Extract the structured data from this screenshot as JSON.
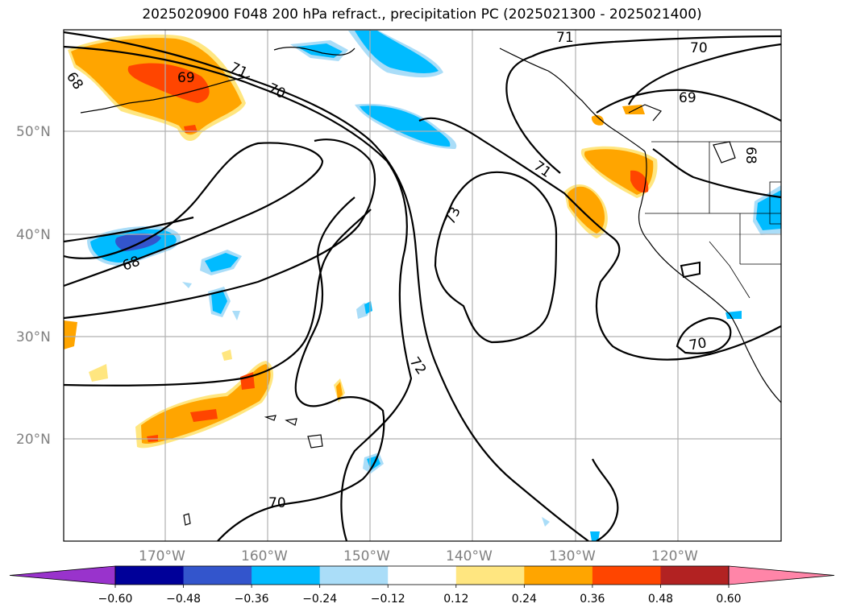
{
  "title": "2025020900 F048 200 hPa refract., precipitation PC (2025021300 - 2025021400)",
  "lat_labels": [
    "50°N",
    "40°N",
    "30°N",
    "20°N"
  ],
  "lon_labels": [
    "170°W",
    "160°W",
    "150°W",
    "140°W",
    "130°W",
    "120°W"
  ],
  "contour_labels": [
    "68",
    "69",
    "71",
    "70",
    "71",
    "70",
    "69",
    "68",
    "68",
    "73",
    "71",
    "72",
    "70",
    "70"
  ],
  "colorbar": {
    "ticks": [
      "−0.60",
      "−0.48",
      "−0.36",
      "−0.24",
      "−0.12",
      "0.12",
      "0.24",
      "0.36",
      "0.48",
      "0.60"
    ],
    "colors": [
      "#9933cc",
      "#000099",
      "#3355cc",
      "#00bbff",
      "#aaddf8",
      "#ffffff",
      "#ffe680",
      "#ffa500",
      "#ff4500",
      "#b22222",
      "#ff85a8"
    ]
  },
  "colors": {
    "contour": "#000000",
    "grid": "#b0b0b0",
    "coast": "#000000"
  }
}
